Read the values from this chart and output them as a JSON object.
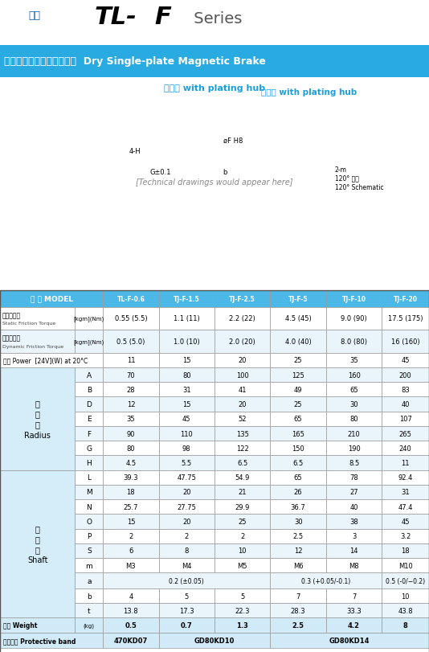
{
  "title_cn": "乾式單板超薄型電磁煞車器",
  "title_en": "Dry Single-plate Magnetic Brake",
  "subtitle_cn": "附導座",
  "subtitle_en": "with plating hub",
  "brand_cn": "台菱",
  "series": "TL-F",
  "series_sub": "Series",
  "header_bg": "#29ABE2",
  "header_text_color": "#FFFFFF",
  "table_header_bg": "#4DB8E8",
  "table_header_text": "#FFFFFF",
  "row_bg_odd": "#FFFFFF",
  "row_bg_even": "#E8F4FB",
  "row_bg_group": "#D0EAF7",
  "border_color": "#808080",
  "cols": [
    "型 號 MODEL",
    "TL-F-0.6",
    "TJ-F-1.5",
    "TJ-F-2.5",
    "TJ-F-5",
    "TJ-F-10",
    "TJ-F-20"
  ],
  "rows": [
    {
      "label_cn": "靜摩擦轉距",
      "label_en": "Static Friction Torque",
      "unit": "[kgm](Nm)",
      "sub_label": "",
      "values": [
        "0.55 (5.5)",
        "1.1 (11)",
        "2.2 (22)",
        "4.5 (45)",
        "9.0 (90)",
        "17.5 (175)"
      ],
      "type": "full"
    },
    {
      "label_cn": "動摩擦轉距",
      "label_en": "Dynamic Friction Torque",
      "unit": "[kgm](Nm)",
      "sub_label": "",
      "values": [
        "0.5 (5.0)",
        "1.0 (10)",
        "2.0 (20)",
        "4.0 (40)",
        "8.0 (80)",
        "16 (160)"
      ],
      "type": "full"
    },
    {
      "label_cn": "功率 Power  [24V](W) at 20°C",
      "label_en": "",
      "unit": "",
      "sub_label": "",
      "values": [
        "11",
        "15",
        "20",
        "25",
        "35",
        "45"
      ],
      "type": "single"
    },
    {
      "group": "徑\n方\n向\nRadius",
      "sub_label": "A",
      "values": [
        "70",
        "80",
        "100",
        "125",
        "160",
        "200"
      ],
      "type": "sub"
    },
    {
      "group": "",
      "sub_label": "B",
      "values": [
        "28",
        "31",
        "41",
        "49",
        "65",
        "83"
      ],
      "type": "sub"
    },
    {
      "group": "",
      "sub_label": "D",
      "values": [
        "12",
        "15",
        "20",
        "25",
        "30",
        "40"
      ],
      "type": "sub"
    },
    {
      "group": "",
      "sub_label": "E",
      "values": [
        "35",
        "45",
        "52",
        "65",
        "80",
        "107"
      ],
      "type": "sub"
    },
    {
      "group": "",
      "sub_label": "F",
      "values": [
        "90",
        "110",
        "135",
        "165",
        "210",
        "265"
      ],
      "type": "sub"
    },
    {
      "group": "",
      "sub_label": "G",
      "values": [
        "80",
        "98",
        "122",
        "150",
        "190",
        "240"
      ],
      "type": "sub"
    },
    {
      "group": "",
      "sub_label": "H",
      "values": [
        "4.5",
        "5.5",
        "6.5",
        "6.5",
        "8.5",
        "11"
      ],
      "type": "sub"
    },
    {
      "group": "軸\n方\n向\nShaft",
      "sub_label": "L",
      "values": [
        "39.3",
        "47.75",
        "54.9",
        "65",
        "78",
        "92.4"
      ],
      "type": "sub"
    },
    {
      "group": "",
      "sub_label": "M",
      "values": [
        "18",
        "20",
        "21",
        "26",
        "27",
        "31"
      ],
      "type": "sub"
    },
    {
      "group": "",
      "sub_label": "N",
      "values": [
        "25.7",
        "27.75",
        "29.9",
        "36.7",
        "40",
        "47.4"
      ],
      "type": "sub"
    },
    {
      "group": "",
      "sub_label": "O",
      "values": [
        "15",
        "20",
        "25",
        "30",
        "38",
        "45"
      ],
      "type": "sub"
    },
    {
      "group": "",
      "sub_label": "P",
      "values": [
        "2",
        "2",
        "2",
        "2.5",
        "3",
        "3.2"
      ],
      "type": "sub"
    },
    {
      "group": "",
      "sub_label": "S",
      "values": [
        "6",
        "8",
        "10",
        "12",
        "14",
        "18"
      ],
      "type": "sub"
    },
    {
      "group": "",
      "sub_label": "m",
      "values": [
        "M3",
        "M4",
        "M5",
        "M6",
        "M8",
        "M10"
      ],
      "type": "sub"
    },
    {
      "group": "",
      "sub_label": "a",
      "span_values": [
        {
          "span": 3,
          "text": "0.2 (±0.05)"
        },
        {
          "span": 2,
          "text": "0.3 (+0.05/-0.1)"
        },
        {
          "span": 1,
          "text": "0.5 (-0/−0.2)"
        }
      ],
      "type": "span"
    },
    {
      "group": "",
      "sub_label": "b",
      "values": [
        "4",
        "5",
        "5",
        "7",
        "7",
        "10"
      ],
      "type": "sub"
    },
    {
      "group": "",
      "sub_label": "t",
      "values": [
        "13.8",
        "17.3",
        "22.3",
        "28.3",
        "33.3",
        "43.8"
      ],
      "type": "sub"
    },
    {
      "label_cn": "重量 Weight",
      "label_en": "",
      "unit": "(kg)",
      "sub_label": "",
      "values": [
        "0.5",
        "0.7",
        "1.3",
        "2.5",
        "4.2",
        "8"
      ],
      "type": "full_bold"
    },
    {
      "label_cn": "保護素子 Protective band",
      "label_en": "",
      "unit": "",
      "sub_label": "",
      "span_values": [
        {
          "span": 1,
          "text": "470KD07"
        },
        {
          "span": 2,
          "text": "GD80KD10"
        },
        {
          "span": 3,
          "text": "GD80KD14"
        }
      ],
      "type": "span_full"
    }
  ]
}
